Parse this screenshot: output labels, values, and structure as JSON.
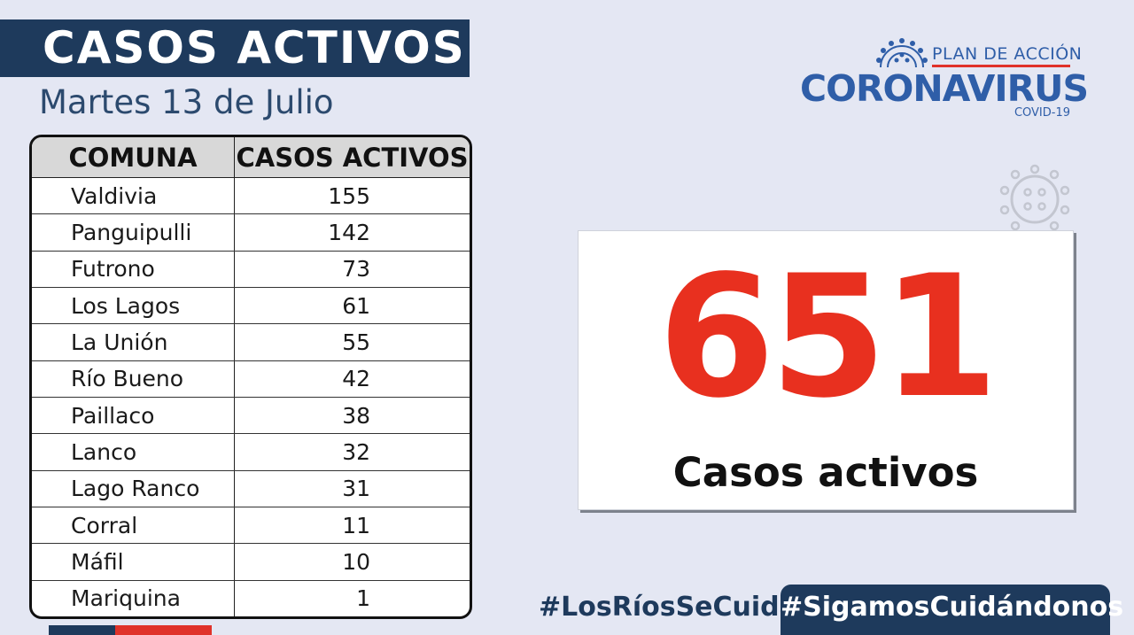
{
  "colors": {
    "navy": "#1e3a5c",
    "red": "#e8301f",
    "logo_blue": "#2f5ea8",
    "background": "#e4e7f3"
  },
  "header": {
    "title": "CASOS ACTIVOS",
    "date": "Martes 13 de Julio"
  },
  "logo": {
    "icon": "coronavirus-icon",
    "plan_text": "PLAN DE ACCIÓN",
    "main_text": "CORONAVIRUS",
    "sub_text": "COVID-19"
  },
  "table": {
    "headers": [
      "COMUNA",
      "CASOS ACTIVOS"
    ],
    "rows": [
      {
        "comuna": "Valdivia",
        "casos": "155"
      },
      {
        "comuna": "Panguipulli",
        "casos": "142"
      },
      {
        "comuna": "Futrono",
        "casos": "73"
      },
      {
        "comuna": "Los Lagos",
        "casos": "61"
      },
      {
        "comuna": "La Unión",
        "casos": "55"
      },
      {
        "comuna": "Río Bueno",
        "casos": "42"
      },
      {
        "comuna": "Paillaco",
        "casos": "38"
      },
      {
        "comuna": "Lanco",
        "casos": "32"
      },
      {
        "comuna": "Lago Ranco",
        "casos": "31"
      },
      {
        "comuna": "Corral",
        "casos": "11"
      },
      {
        "comuna": "Máfil",
        "casos": "10"
      },
      {
        "comuna": "Mariquina",
        "casos": "1"
      }
    ]
  },
  "total": {
    "number": "651",
    "label": "Casos activos"
  },
  "footer": {
    "hashtag_1": "#LosRíosSeCuida",
    "hashtag_2": "#SigamosCuidándonos"
  }
}
